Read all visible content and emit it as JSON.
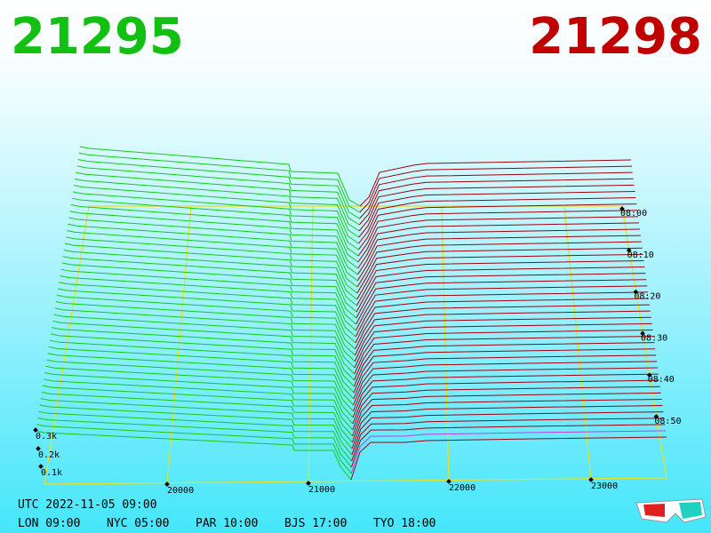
{
  "header": {
    "bid": "21295",
    "ask": "21298"
  },
  "price_axis": [
    "20000",
    "21000",
    "22000",
    "23000"
  ],
  "time_axis": [
    "08:00",
    "08:10",
    "08:20",
    "08:30",
    "08:40",
    "08:50"
  ],
  "volume_axis": [
    "0.3k",
    "0.2k",
    "0.1k"
  ],
  "footer": {
    "utc": "UTC 2022-11-05 09:00",
    "cities": [
      "LON 09:00",
      "NYC 05:00",
      "PAR 10:00",
      "BJS 17:00",
      "TYO 18:00"
    ]
  }
}
